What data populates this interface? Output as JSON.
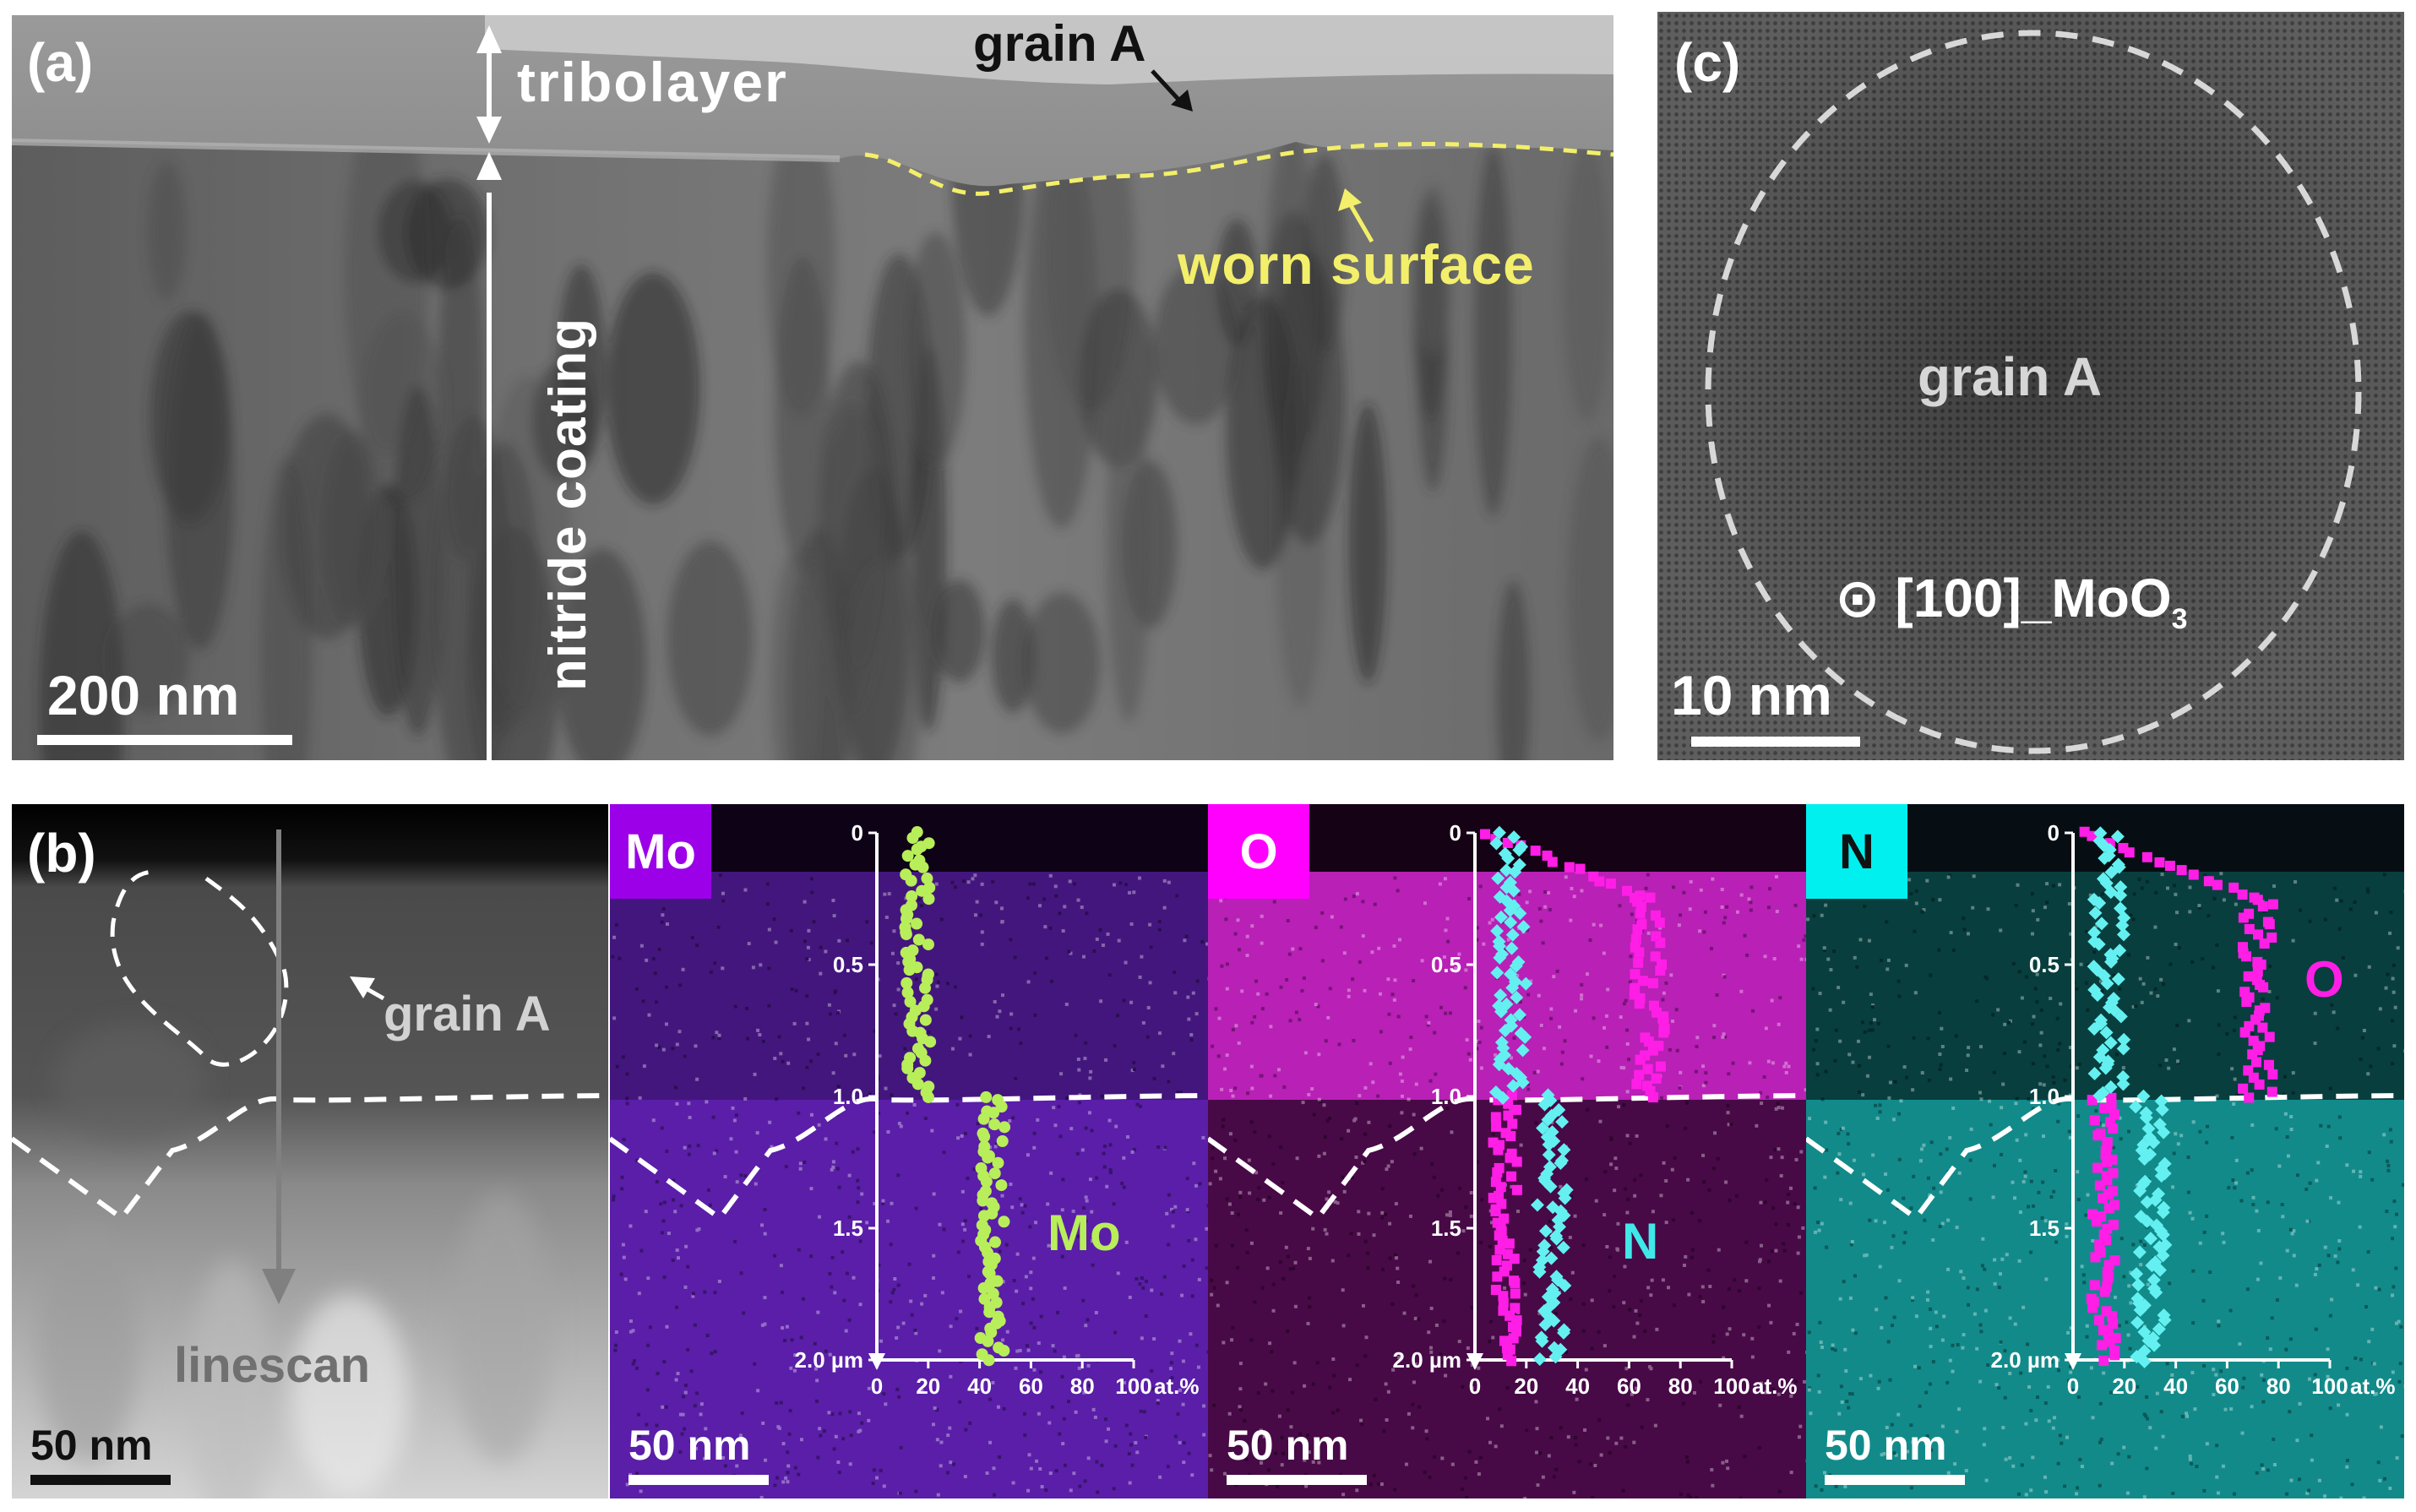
{
  "panel_a": {
    "label": "(a)",
    "tribolayer": "tribolayer",
    "grain": "grain A",
    "nitride": "nitride coating",
    "worn": "worn surface",
    "scalebar": "200 nm"
  },
  "panel_c": {
    "label": "(c)",
    "grain": "grain A",
    "zone_symbol": "⊙",
    "zone_main": "[100]_MoO",
    "zone_sub": "3",
    "scalebar": "10 nm"
  },
  "panel_b": {
    "label": "(b)",
    "grain": "grain A",
    "linescan": "linescan",
    "scalebar": "50 nm",
    "maps": [
      {
        "element": "Mo",
        "tag_color": "#9b00e8",
        "map_color": "#5a1ea8",
        "scalebar": "50 nm"
      },
      {
        "element": "O",
        "tag_color": "#ff00ff",
        "map_color": "#a0169e",
        "scalebar": "50 nm"
      },
      {
        "element": "N",
        "tag_color": "#00f0f0",
        "map_color": "#128a8a",
        "scalebar": "50 nm"
      }
    ]
  },
  "chart_data": [
    {
      "type": "scatter",
      "panel": "Mo map",
      "xlabel": "at.%",
      "ylabel": "",
      "xlim": [
        0,
        100
      ],
      "ylim": [
        2.0,
        0
      ],
      "x_ticks": [
        "0",
        "20",
        "40",
        "60",
        "80",
        "100"
      ],
      "y_ticks": [
        "0",
        "0.5",
        "1.0",
        "1.5",
        "2.0 µm"
      ],
      "grid": false,
      "series": [
        {
          "name": "Mo",
          "color": "#b8ee5a",
          "marker": "circle",
          "segments": [
            {
              "y_range": [
                0.0,
                1.0
              ],
              "x_center": 16,
              "x_spread": 5
            },
            {
              "y_range": [
                1.0,
                2.0
              ],
              "x_center": 45,
              "x_spread": 5
            }
          ]
        }
      ]
    },
    {
      "type": "scatter",
      "panel": "O map",
      "xlabel": "at.%",
      "ylabel": "",
      "xlim": [
        0,
        100
      ],
      "ylim": [
        2.0,
        0
      ],
      "x_ticks": [
        "0",
        "20",
        "40",
        "60",
        "80",
        "100"
      ],
      "y_ticks": [
        "0",
        "0.5",
        "1.0",
        "1.5",
        "2.0 µm"
      ],
      "grid": false,
      "series": [
        {
          "name": "O",
          "color": "#ff1ee6",
          "marker": "square",
          "segments": [
            {
              "y_range": [
                0.0,
                0.25
              ],
              "x_start": 4,
              "x_end": 68
            },
            {
              "y_range": [
                0.25,
                1.0
              ],
              "x_center": 68,
              "x_spread": 6
            },
            {
              "y_range": [
                1.0,
                2.0
              ],
              "x_center": 12,
              "x_spread": 5
            }
          ]
        },
        {
          "name": "N",
          "color": "#64f0f0",
          "marker": "diamond",
          "segments": [
            {
              "y_range": [
                0.0,
                1.0
              ],
              "x_center": 14,
              "x_spread": 6
            },
            {
              "y_range": [
                1.0,
                2.0
              ],
              "x_center": 30,
              "x_spread": 6
            }
          ]
        }
      ]
    },
    {
      "type": "scatter",
      "panel": "N map",
      "xlabel": "at.%",
      "ylabel": "",
      "xlim": [
        0,
        100
      ],
      "ylim": [
        2.0,
        0
      ],
      "x_ticks": [
        "0",
        "20",
        "40",
        "60",
        "80",
        "100"
      ],
      "y_ticks": [
        "0",
        "0.5",
        "1.0",
        "1.5",
        "2.0 µm"
      ],
      "grid": false,
      "series": [
        {
          "name": "O",
          "color": "#ff1ee6",
          "marker": "square",
          "segments": [
            {
              "y_range": [
                0.0,
                0.25
              ],
              "x_start": 4,
              "x_end": 72
            },
            {
              "y_range": [
                0.25,
                1.0
              ],
              "x_center": 72,
              "x_spread": 6
            },
            {
              "y_range": [
                1.0,
                2.0
              ],
              "x_center": 12,
              "x_spread": 5
            }
          ]
        },
        {
          "name": "N",
          "color": "#64f0f0",
          "marker": "diamond",
          "segments": [
            {
              "y_range": [
                0.0,
                1.0
              ],
              "x_center": 14,
              "x_spread": 6
            },
            {
              "y_range": [
                1.0,
                2.0
              ],
              "x_center": 30,
              "x_spread": 6
            }
          ]
        }
      ]
    }
  ]
}
